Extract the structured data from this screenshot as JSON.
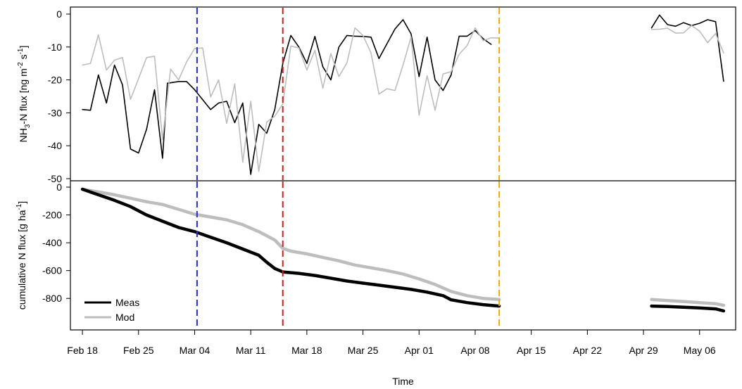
{
  "x_axis": {
    "label": "Time",
    "tick_labels": [
      "Feb 18",
      "Feb 25",
      "Mar 04",
      "Mar 11",
      "Mar 18",
      "Mar 25",
      "Apr 01",
      "Apr 08",
      "Apr 15",
      "Apr 22",
      "Apr 29",
      "May 06"
    ]
  },
  "chart_data": [
    {
      "type": "line",
      "panel": "top",
      "ylabel": "NH3-N flux [ng m-2 s-1]",
      "ylabel_parts": {
        "a": "NH",
        "a_sub": "3",
        "b": "-N flux [ng m",
        "b_sup": "-2",
        "c": " s",
        "c_sup": "-1",
        "d": "]"
      },
      "ylim": [
        -50,
        0
      ],
      "y_ticks": [
        0,
        -10,
        -20,
        -30,
        -40,
        -50
      ],
      "x_unit": "days since Feb 18",
      "xlim": [
        -1.5,
        81.5
      ],
      "vlines": [
        {
          "x": 14.3,
          "color": "#1f2fd0"
        },
        {
          "x": 25.0,
          "color": "#cc1f1f"
        },
        {
          "x": 52.0,
          "color": "#f0a800"
        }
      ],
      "series": [
        {
          "name": "Meas",
          "color": "#000000",
          "width": 1.6,
          "segments": [
            [
              [
                0,
                -29
              ],
              [
                1,
                -29.2
              ],
              [
                2,
                -18.5
              ],
              [
                3,
                -27
              ],
              [
                4,
                -15.5
              ],
              [
                5,
                -21.5
              ],
              [
                6,
                -41
              ],
              [
                7,
                -42.2
              ],
              [
                8,
                -35
              ],
              [
                9,
                -23
              ],
              [
                10,
                -43.8
              ],
              [
                10.6,
                -21
              ],
              [
                12,
                -20.5
              ],
              [
                13,
                -20.5
              ],
              [
                14,
                -23
              ],
              [
                15,
                -26
              ],
              [
                16,
                -29
              ],
              [
                17,
                -27
              ],
              [
                18,
                -26.5
              ],
              [
                19,
                -33
              ],
              [
                20,
                -27
              ],
              [
                21,
                -48.7
              ],
              [
                22,
                -33.5
              ],
              [
                23,
                -36.2
              ],
              [
                24,
                -29
              ],
              [
                25,
                -15
              ],
              [
                26,
                -6.5
              ],
              [
                27,
                -10
              ],
              [
                28,
                -15
              ],
              [
                29,
                -6.8
              ],
              [
                30,
                -16
              ],
              [
                31,
                -20
              ],
              [
                32,
                -10
              ],
              [
                33,
                -6.5
              ],
              [
                34,
                -6.7
              ],
              [
                35,
                -6.8
              ],
              [
                36,
                -7
              ],
              [
                37,
                -13.5
              ],
              [
                38,
                -9
              ],
              [
                39,
                -4.5
              ],
              [
                40,
                -1.7
              ],
              [
                41,
                -6
              ],
              [
                42,
                -19
              ],
              [
                43,
                -7
              ],
              [
                44,
                -20
              ],
              [
                45,
                -23.2
              ],
              [
                46,
                -18.5
              ],
              [
                47,
                -6.7
              ],
              [
                48,
                -6.7
              ],
              [
                49,
                -5
              ],
              [
                50,
                -7.5
              ],
              [
                51,
                -9.2
              ]
            ],
            [
              [
                71,
                -4.2
              ],
              [
                72,
                -0.3
              ],
              [
                73,
                -3.2
              ],
              [
                74,
                -3.7
              ],
              [
                75,
                -2.6
              ],
              [
                76,
                -3.5
              ],
              [
                77,
                -2.8
              ],
              [
                78,
                -1.7
              ],
              [
                79,
                -2.3
              ],
              [
                80,
                -20.4
              ]
            ]
          ]
        },
        {
          "name": "Mod",
          "color": "#bdbdbd",
          "width": 1.6,
          "segments": [
            [
              [
                0,
                -15.5
              ],
              [
                1,
                -15
              ],
              [
                2,
                -6.3
              ],
              [
                3,
                -17
              ],
              [
                4,
                -14
              ],
              [
                5,
                -13.2
              ],
              [
                6,
                -25.9
              ],
              [
                7,
                -19.6
              ],
              [
                8,
                -13.2
              ],
              [
                9,
                -12.8
              ],
              [
                10,
                -38.1
              ],
              [
                11,
                -16.7
              ],
              [
                12,
                -20
              ],
              [
                13,
                -14.5
              ],
              [
                14,
                -10.5
              ],
              [
                15,
                -10.3
              ],
              [
                16,
                -25.2
              ],
              [
                17,
                -20
              ],
              [
                18,
                -33.2
              ],
              [
                19,
                -21.2
              ],
              [
                20,
                -45
              ],
              [
                21,
                -26.5
              ],
              [
                22,
                -47.8
              ],
              [
                23,
                -32.8
              ],
              [
                24,
                -31
              ],
              [
                25,
                -27.3
              ],
              [
                26,
                -9.7
              ],
              [
                27,
                -10.3
              ],
              [
                28,
                -17
              ],
              [
                29,
                -11
              ],
              [
                30,
                -22.5
              ],
              [
                31,
                -12
              ],
              [
                32,
                -19
              ],
              [
                33,
                -14.8
              ],
              [
                34,
                -4.2
              ],
              [
                35,
                -6.5
              ],
              [
                36,
                -11.8
              ],
              [
                37,
                -24.3
              ],
              [
                38,
                -22.7
              ],
              [
                39,
                -23.2
              ],
              [
                40,
                -15.5
              ],
              [
                41,
                -7
              ],
              [
                42,
                -30.7
              ],
              [
                43,
                -18.7
              ],
              [
                44,
                -29.2
              ],
              [
                45,
                -18.2
              ],
              [
                46,
                -17.5
              ],
              [
                47,
                -12.2
              ],
              [
                48,
                -9.5
              ],
              [
                49,
                -4.2
              ],
              [
                50,
                -8.1
              ],
              [
                51,
                -7.2
              ],
              [
                52,
                -7.3
              ]
            ],
            [
              [
                71,
                -4.7
              ],
              [
                72,
                -4.6
              ],
              [
                73,
                -4.3
              ],
              [
                74,
                -5.8
              ],
              [
                75,
                -5.7
              ],
              [
                76,
                -3.5
              ],
              [
                77,
                -5.2
              ],
              [
                78,
                -8.7
              ],
              [
                79,
                -5.9
              ],
              [
                80,
                -11.8
              ]
            ]
          ]
        }
      ]
    },
    {
      "type": "line",
      "panel": "bottom",
      "ylabel": "cumulative N flux [g ha-1]",
      "ylabel_parts": {
        "a": "cumulative N flux [g ha",
        "a_sup": "-1",
        "b": "]"
      },
      "ylim": [
        -920,
        20
      ],
      "y_ticks": [
        0,
        -200,
        -400,
        -600,
        -800
      ],
      "x_unit": "days since Feb 18",
      "xlim": [
        -1.5,
        81.5
      ],
      "legend": {
        "position": "bottom-left",
        "entries": [
          "Meas",
          "Mod"
        ]
      },
      "vlines": [
        {
          "x": 14.3,
          "color": "#1f2fd0"
        },
        {
          "x": 25.0,
          "color": "#cc1f1f"
        },
        {
          "x": 52.0,
          "color": "#f0a800"
        }
      ],
      "series": [
        {
          "name": "Mod",
          "color": "#bdbdbd",
          "width": 4.5,
          "segments": [
            [
              [
                0,
                -15
              ],
              [
                2,
                -35
              ],
              [
                4,
                -55
              ],
              [
                6,
                -80
              ],
              [
                8,
                -105
              ],
              [
                10,
                -125
              ],
              [
                12,
                -160
              ],
              [
                14,
                -195
              ],
              [
                16,
                -215
              ],
              [
                18,
                -235
              ],
              [
                20,
                -270
              ],
              [
                22,
                -320
              ],
              [
                24,
                -380
              ],
              [
                25,
                -440
              ],
              [
                26,
                -460
              ],
              [
                28,
                -480
              ],
              [
                30,
                -505
              ],
              [
                32,
                -530
              ],
              [
                34,
                -560
              ],
              [
                36,
                -580
              ],
              [
                38,
                -600
              ],
              [
                40,
                -625
              ],
              [
                42,
                -660
              ],
              [
                44,
                -700
              ],
              [
                46,
                -750
              ],
              [
                48,
                -780
              ],
              [
                50,
                -800
              ],
              [
                52,
                -808
              ]
            ],
            [
              [
                71,
                -808
              ],
              [
                73,
                -815
              ],
              [
                75,
                -822
              ],
              [
                77,
                -830
              ],
              [
                79,
                -838
              ],
              [
                80,
                -850
              ]
            ]
          ]
        },
        {
          "name": "Meas",
          "color": "#000000",
          "width": 4.5,
          "segments": [
            [
              [
                0,
                -15
              ],
              [
                2,
                -55
              ],
              [
                4,
                -95
              ],
              [
                6,
                -140
              ],
              [
                8,
                -200
              ],
              [
                10,
                -245
              ],
              [
                12,
                -290
              ],
              [
                14,
                -320
              ],
              [
                16,
                -360
              ],
              [
                18,
                -400
              ],
              [
                20,
                -445
              ],
              [
                22,
                -490
              ],
              [
                23,
                -540
              ],
              [
                24,
                -585
              ],
              [
                25,
                -610
              ],
              [
                27,
                -620
              ],
              [
                29,
                -635
              ],
              [
                31,
                -655
              ],
              [
                33,
                -675
              ],
              [
                35,
                -690
              ],
              [
                37,
                -705
              ],
              [
                39,
                -720
              ],
              [
                41,
                -735
              ],
              [
                43,
                -755
              ],
              [
                45,
                -780
              ],
              [
                46,
                -810
              ],
              [
                48,
                -830
              ],
              [
                50,
                -845
              ],
              [
                52,
                -855
              ]
            ],
            [
              [
                71,
                -855
              ],
              [
                73,
                -858
              ],
              [
                75,
                -863
              ],
              [
                77,
                -868
              ],
              [
                79,
                -875
              ],
              [
                80,
                -890
              ]
            ]
          ]
        }
      ]
    }
  ]
}
